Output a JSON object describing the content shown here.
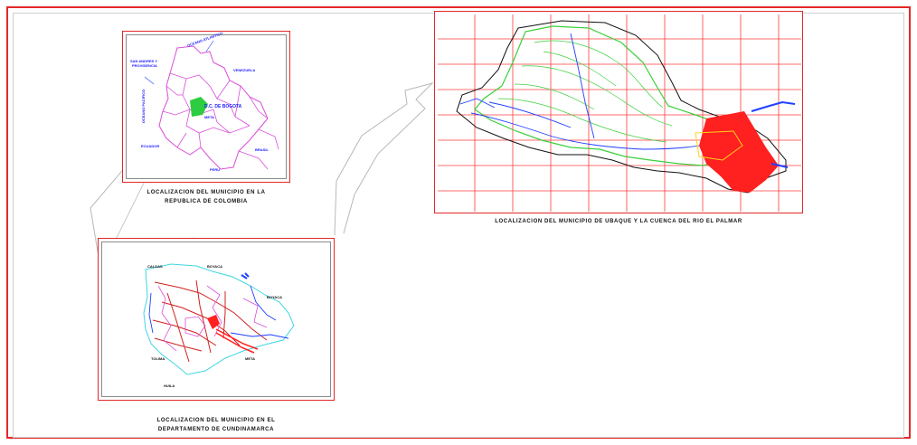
{
  "colombia_map": {
    "caption_line1": "LOCALIZACION DEL MUNICIPIO EN LA",
    "caption_line2": "REPUBLICA DE COLOMBIA",
    "labels": {
      "oceano": "OCEANO ATLANTICO",
      "san_andres": "SAN ANDRES Y",
      "providencia": "PROVIDENCIA",
      "venezuela": "VENEZUELA",
      "oceano_pacifico": "OCEANO PACIFICO",
      "bogota": "D.C. DE BOGOTA",
      "meta": "META",
      "ecuador": "ECUADOR",
      "brasil": "BRASIL",
      "peru": "PERU"
    }
  },
  "cundinamarca_map": {
    "caption_line1": "LOCALIZACION DEL MUNICIPIO EN EL",
    "caption_line2": "DEPARTAMENTO DE CUNDINAMARCA",
    "labels": {
      "caldas": "CALDAS",
      "boyaca_top": "BOYACA",
      "boyaca_right": "BOYACA",
      "tolima": "TOLIMA",
      "meta": "META",
      "huila": "HUILA"
    }
  },
  "ubaque_map": {
    "caption": "LOCALIZACION DEL MUNICIPIO DE UBAQUE Y LA CUENCA DEL RIO EL PALMAR"
  },
  "colors": {
    "frame": "#e32828",
    "boundary_colombia": "#d94fd9",
    "bogota_fill": "#2ecc40",
    "water": "#1f3fff",
    "contours": "#3ccf3c",
    "highlight": "#ff2020",
    "grid": "#ff3b3b"
  }
}
